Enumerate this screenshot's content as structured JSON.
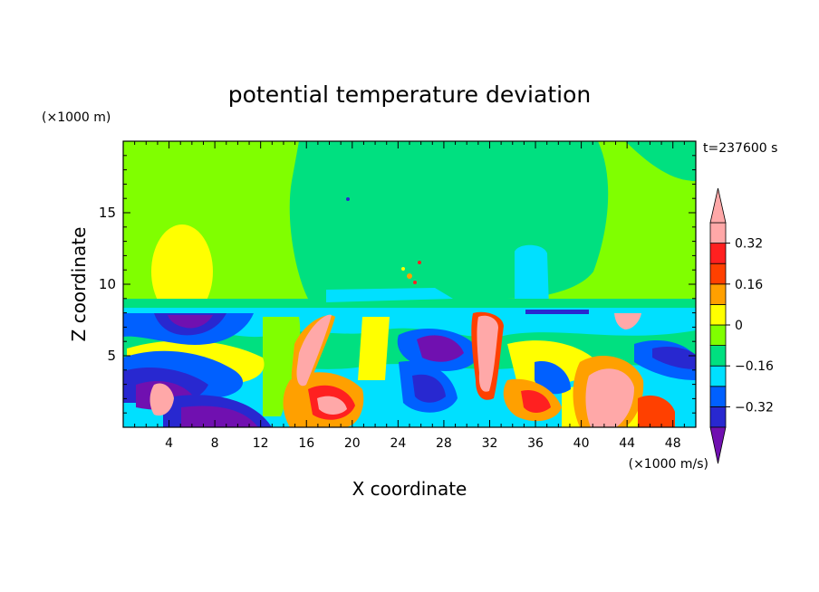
{
  "chart_data": {
    "type": "heatmap",
    "title": "potential temperature deviation",
    "xlabel": "X coordinate",
    "ylabel": "Z coordinate",
    "x_unit": "(×1000 m/s)",
    "y_unit": "(×1000 m)",
    "time_label": "t=237600 s",
    "xlim": [
      0,
      50
    ],
    "ylim": [
      0,
      20
    ],
    "xticks": [
      4,
      8,
      12,
      16,
      20,
      24,
      28,
      32,
      36,
      40,
      44,
      48
    ],
    "yticks": [
      5,
      10,
      15
    ],
    "colorbar": {
      "levels": [
        -0.4,
        -0.32,
        -0.24,
        -0.16,
        -0.08,
        0,
        0.08,
        0.16,
        0.24,
        0.32,
        0.4
      ],
      "labels": [
        "0.32",
        "0.16",
        "0",
        "−0.16",
        "−0.32"
      ],
      "label_values": [
        0.32,
        0.16,
        0,
        -0.16,
        -0.32
      ],
      "colors": [
        "#7010b0",
        "#2828d0",
        "#0060ff",
        "#00e0ff",
        "#00e080",
        "#80ff00",
        "#ffff00",
        "#ffa000",
        "#ff4000",
        "#ff2020",
        "#ffa8a8",
        "#ffa8a8"
      ]
    }
  }
}
